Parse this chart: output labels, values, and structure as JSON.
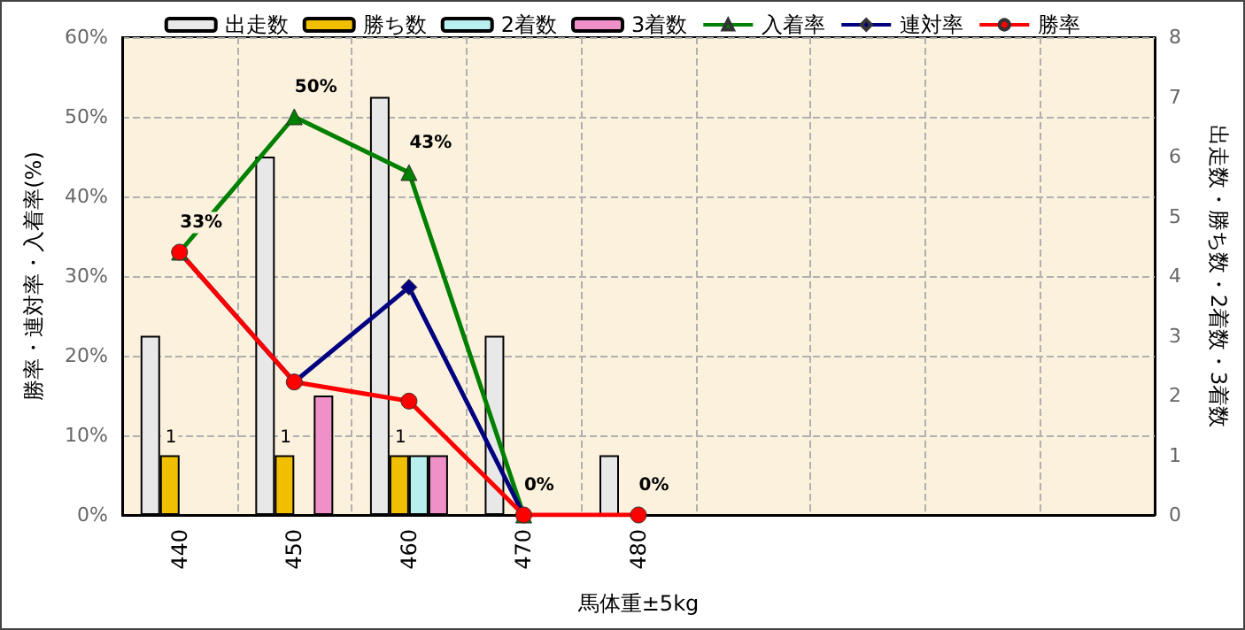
{
  "chart_data": {
    "type": "bar",
    "categories": [
      "440",
      "450",
      "460",
      "470",
      "480",
      null,
      null,
      null,
      null
    ],
    "series": [
      {
        "name": "出走数",
        "axis": "y2",
        "color": "#e8e8e8",
        "values": [
          3,
          6,
          7,
          3,
          1,
          null,
          null,
          null,
          null
        ]
      },
      {
        "name": "勝ち数",
        "axis": "y2",
        "color": "#f0c000",
        "values": [
          1,
          1,
          1,
          null,
          null,
          null,
          null,
          null,
          null
        ],
        "value_labels": [
          "1",
          "1",
          "1",
          null,
          null,
          null,
          null,
          null,
          null
        ]
      },
      {
        "name": "2着数",
        "axis": "y2",
        "color": "#b8f0f0",
        "values": [
          null,
          null,
          1,
          null,
          null,
          null,
          null,
          null,
          null
        ]
      },
      {
        "name": "3着数",
        "axis": "y2",
        "color": "#f090c8",
        "values": [
          null,
          2,
          1,
          null,
          null,
          null,
          null,
          null,
          null
        ]
      },
      {
        "name": "入着率",
        "type": "line",
        "marker": "triangle",
        "color": "#008000",
        "values": [
          33,
          50,
          43,
          0,
          null,
          null,
          null,
          null,
          null
        ],
        "value_labels": [
          "33%",
          "50%",
          "43%",
          "0%",
          null,
          null,
          null,
          null,
          null
        ]
      },
      {
        "name": "連対率",
        "type": "line",
        "marker": "diamond",
        "color": "#000080",
        "values": [
          33,
          16.7,
          28.6,
          0,
          null,
          null,
          null,
          null,
          null
        ]
      },
      {
        "name": "勝率",
        "type": "line",
        "marker": "circle",
        "color": "#ff0000",
        "values": [
          33,
          16.7,
          14.3,
          0,
          0,
          null,
          null,
          null,
          null
        ],
        "value_labels": [
          null,
          null,
          null,
          null,
          "0%",
          null,
          null,
          null,
          null
        ]
      }
    ],
    "xlabel": "馬体重±5kg",
    "ylabel": "勝率・連対率・入着率(%)",
    "y2label": "出走数・勝ち数・2着数・3着数",
    "ylim": [
      0,
      60
    ],
    "yticks": [
      {
        "value": 0,
        "label": "0%"
      },
      {
        "value": 10,
        "label": "10%"
      },
      {
        "value": 20,
        "label": "20%"
      },
      {
        "value": 30,
        "label": "30%"
      },
      {
        "value": 40,
        "label": "40%"
      },
      {
        "value": 50,
        "label": "50%"
      },
      {
        "value": 60,
        "label": "60%"
      }
    ],
    "y2lim": [
      0,
      8
    ],
    "y2ticks": [
      0,
      1,
      2,
      3,
      4,
      5,
      6,
      7,
      8
    ],
    "grid": true,
    "legend": "top"
  }
}
